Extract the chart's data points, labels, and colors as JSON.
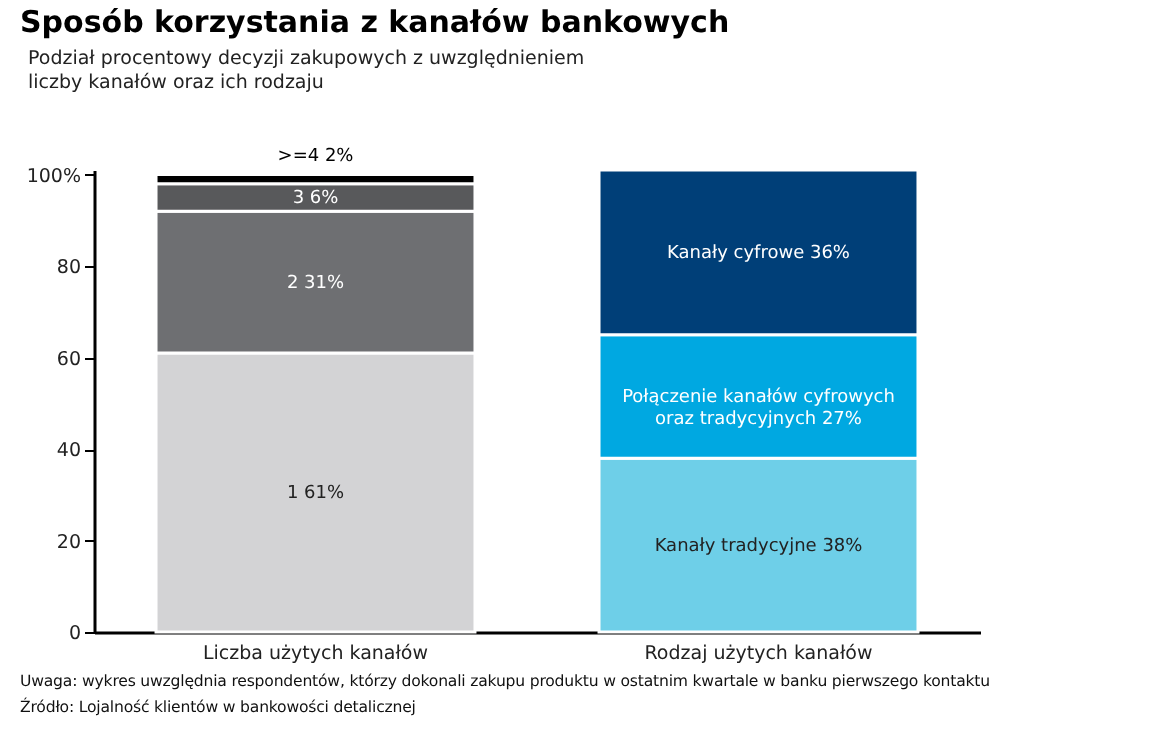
{
  "chart_data": {
    "type": "bar",
    "stacked": true,
    "title": "Sposób korzystania z kanałów bankowych",
    "subtitle": "Podział procentowy decyzji zakupowych z uwzględnieniem\nliczby kanałów oraz ich rodzaju",
    "categories": [
      "Liczba użytych kanałów",
      "Rodzaj użytych kanałów"
    ],
    "series": [
      {
        "color": "#d3d3d5",
        "values": [
          61,
          null
        ],
        "value_labels": [
          "1 61%",
          null
        ]
      },
      {
        "color": "#6e6f72",
        "values": [
          31,
          null
        ],
        "value_labels": [
          "2 31%",
          null
        ]
      },
      {
        "color": "#58595b",
        "values": [
          6,
          null
        ],
        "value_labels": [
          "3 6%",
          null
        ]
      },
      {
        "color": "#000000",
        "values": [
          2,
          null
        ],
        "value_labels": [
          ">=4 2%",
          null
        ]
      },
      {
        "color": "#6ecfe8",
        "values": [
          null,
          38
        ],
        "value_labels": [
          null,
          "Kanały tradycyjne 38%"
        ]
      },
      {
        "color": "#00a8e1",
        "values": [
          null,
          27
        ],
        "value_labels": [
          null,
          "Połączenie kanałów cyfrowych\noraz tradycyjnych 27%"
        ]
      },
      {
        "color": "#003f78",
        "values": [
          null,
          36
        ],
        "value_labels": [
          null,
          "Kanały cyfrowe 36%"
        ]
      }
    ],
    "ylim": [
      0,
      101
    ],
    "yticks": [
      0,
      20,
      40,
      60,
      80,
      {
        "value": 100,
        "label": "100%"
      }
    ],
    "grid": false,
    "legend": false,
    "annotations": [
      "Uwaga: wykres uwzględnia respondentów, którzy dokonali zakupu produktu w ostatnim kwartale w banku pierwszego kontaktu",
      "Źródło: Lojalność klientów w bankowości detalicznej"
    ]
  }
}
